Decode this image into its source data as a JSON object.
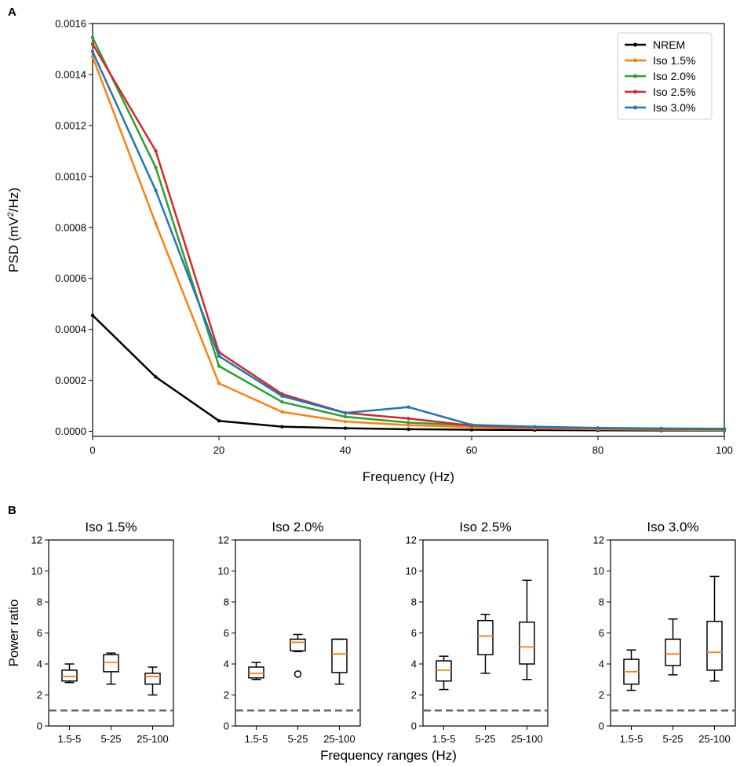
{
  "chart_data": [
    {
      "panel": "A",
      "type": "line",
      "xlabel": "Frequency (Hz)",
      "ylabel_prefix": "PSD (mV",
      "ylabel_sup": "2",
      "ylabel_suffix": "/Hz)",
      "xlim": [
        0,
        100
      ],
      "ylim": [
        -2e-05,
        0.0016
      ],
      "xticks": [
        0,
        20,
        40,
        60,
        80,
        100
      ],
      "xtick_labels": [
        "0",
        "20",
        "40",
        "60",
        "80",
        "100"
      ],
      "yticks": [
        0,
        0.0002,
        0.0004,
        0.0006,
        0.0008,
        0.001,
        0.0012,
        0.0014,
        0.0016
      ],
      "ytick_labels": [
        "0.0000",
        "0.0002",
        "0.0004",
        "0.0006",
        "0.0008",
        "0.0010",
        "0.0012",
        "0.0014",
        "0.0016"
      ],
      "legend_position": "top-right",
      "x": [
        0,
        10,
        20,
        30,
        40,
        50,
        60,
        70,
        80,
        90,
        100
      ],
      "series": [
        {
          "name": "NREM",
          "color": "#000000",
          "values": [
            0.000455,
            0.000213,
            4.1e-05,
            1.8e-05,
            1.2e-05,
            8e-06,
            6e-06,
            5e-06,
            4e-06,
            3e-06,
            3e-06
          ]
        },
        {
          "name": "Iso 1.5%",
          "color": "#ff7f0e",
          "values": [
            0.00147,
            0.000815,
            0.000188,
            7.6e-05,
            3.8e-05,
            2.4e-05,
            1.6e-05,
            1.1e-05,
            8e-06,
            6e-06,
            5e-06
          ]
        },
        {
          "name": "Iso 2.0%",
          "color": "#2ca02c",
          "values": [
            0.001545,
            0.001035,
            0.000256,
            0.000115,
            5.7e-05,
            3.4e-05,
            2.3e-05,
            1.6e-05,
            1.2e-05,
            9e-06,
            7e-06
          ]
        },
        {
          "name": "Iso 2.5%",
          "color": "#d62728",
          "values": [
            0.00152,
            0.0011,
            0.00031,
            0.000146,
            7.2e-05,
            5e-05,
            2.2e-05,
            1.6e-05,
            1.2e-05,
            1e-05,
            9e-06
          ]
        },
        {
          "name": "Iso 3.0%",
          "color": "#1f77b4",
          "values": [
            0.00149,
            0.000945,
            0.000295,
            0.000138,
            7.2e-05,
            9.5e-05,
            2.5e-05,
            1.8e-05,
            1.3e-05,
            1.1e-05,
            1e-05
          ]
        }
      ]
    },
    {
      "panel": "B",
      "type": "box",
      "xlabel": "Frequency ranges (Hz)",
      "ylabel": "Power ratio",
      "ylim": [
        0,
        12
      ],
      "yticks": [
        0,
        2,
        4,
        6,
        8,
        10,
        12
      ],
      "ytick_labels": [
        "0",
        "2",
        "4",
        "6",
        "8",
        "10",
        "12"
      ],
      "categories": [
        "1.5-5",
        "5-25",
        "25-100"
      ],
      "reference_line": 1,
      "box_color": "#000000",
      "median_color": "#ff7f0e",
      "reference_color": "#666666",
      "subplots": [
        {
          "title": "Iso 1.5%",
          "boxes": [
            {
              "whislo": 2.8,
              "q1": 2.9,
              "med": 3.2,
              "q3": 3.6,
              "whishi": 4.0,
              "fliers": []
            },
            {
              "whislo": 2.7,
              "q1": 3.5,
              "med": 4.1,
              "q3": 4.6,
              "whishi": 4.7,
              "fliers": []
            },
            {
              "whislo": 2.0,
              "q1": 2.7,
              "med": 3.2,
              "q3": 3.4,
              "whishi": 3.8,
              "fliers": []
            }
          ]
        },
        {
          "title": "Iso 2.0%",
          "boxes": [
            {
              "whislo": 3.0,
              "q1": 3.1,
              "med": 3.4,
              "q3": 3.8,
              "whishi": 4.1,
              "fliers": []
            },
            {
              "whislo": 4.8,
              "q1": 4.85,
              "med": 5.4,
              "q3": 5.6,
              "whishi": 5.9,
              "fliers": [
                3.35
              ]
            },
            {
              "whislo": 2.7,
              "q1": 3.45,
              "med": 4.65,
              "q3": 5.6,
              "whishi": 5.6,
              "fliers": []
            }
          ]
        },
        {
          "title": "Iso 2.5%",
          "boxes": [
            {
              "whislo": 2.35,
              "q1": 2.9,
              "med": 3.6,
              "q3": 4.2,
              "whishi": 4.5,
              "fliers": []
            },
            {
              "whislo": 3.4,
              "q1": 4.6,
              "med": 5.8,
              "q3": 6.8,
              "whishi": 7.2,
              "fliers": []
            },
            {
              "whislo": 3.0,
              "q1": 4.0,
              "med": 5.1,
              "q3": 6.7,
              "whishi": 9.4,
              "fliers": []
            }
          ]
        },
        {
          "title": "Iso 3.0%",
          "boxes": [
            {
              "whislo": 2.3,
              "q1": 2.7,
              "med": 3.5,
              "q3": 4.3,
              "whishi": 4.9,
              "fliers": []
            },
            {
              "whislo": 3.3,
              "q1": 3.9,
              "med": 4.65,
              "q3": 5.6,
              "whishi": 6.9,
              "fliers": []
            },
            {
              "whislo": 2.9,
              "q1": 3.6,
              "med": 4.75,
              "q3": 6.75,
              "whishi": 9.65,
              "fliers": []
            }
          ]
        }
      ]
    }
  ],
  "panel_labels": {
    "a": "A",
    "b": "B"
  }
}
